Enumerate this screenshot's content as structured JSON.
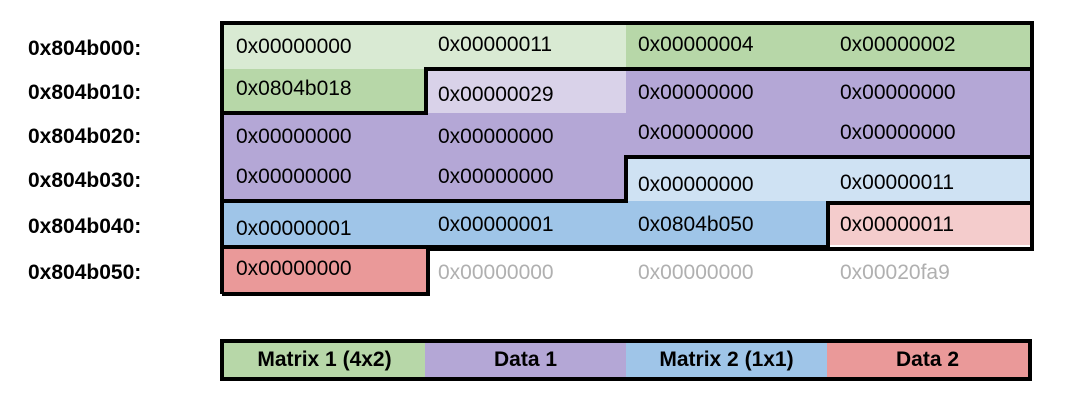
{
  "addresses": [
    "0x804b000:",
    "0x804b010:",
    "0x804b020:",
    "0x804b030:",
    "0x804b040:",
    "0x804b050:"
  ],
  "rows": [
    [
      "0x00000000",
      "0x00000011",
      "0x00000004",
      "0x00000002"
    ],
    [
      "0x0804b018",
      "0x00000029",
      "0x00000000",
      "0x00000000"
    ],
    [
      "0x00000000",
      "0x00000000",
      "0x00000000",
      "0x00000000"
    ],
    [
      "0x00000000",
      "0x00000000",
      "0x00000000",
      "0x00000011"
    ],
    [
      "0x00000001",
      "0x00000001",
      "0x0804b050",
      "0x00000011"
    ],
    [
      "0x00000000",
      "0x00000000",
      "0x00000000",
      "0x00020fa9"
    ]
  ],
  "legend": [
    {
      "label": "Matrix 1 (4x2)",
      "color": "#b7d7a8"
    },
    {
      "label": "Data 1",
      "color": "#b4a7d6"
    },
    {
      "label": "Matrix 2 (1x1)",
      "color": "#9fc5e8"
    },
    {
      "label": "Data 2",
      "color": "#ea9999"
    }
  ],
  "colors": {
    "matrix1_header": "#d9ead3",
    "matrix1": "#b7d7a8",
    "data1_header": "#d9d2e9",
    "data1": "#b4a7d6",
    "matrix2_header": "#cfe2f3",
    "matrix2": "#9fc5e8",
    "data2_header": "#f4cccc",
    "data2": "#ea9999",
    "free": "#b0b0b0"
  }
}
